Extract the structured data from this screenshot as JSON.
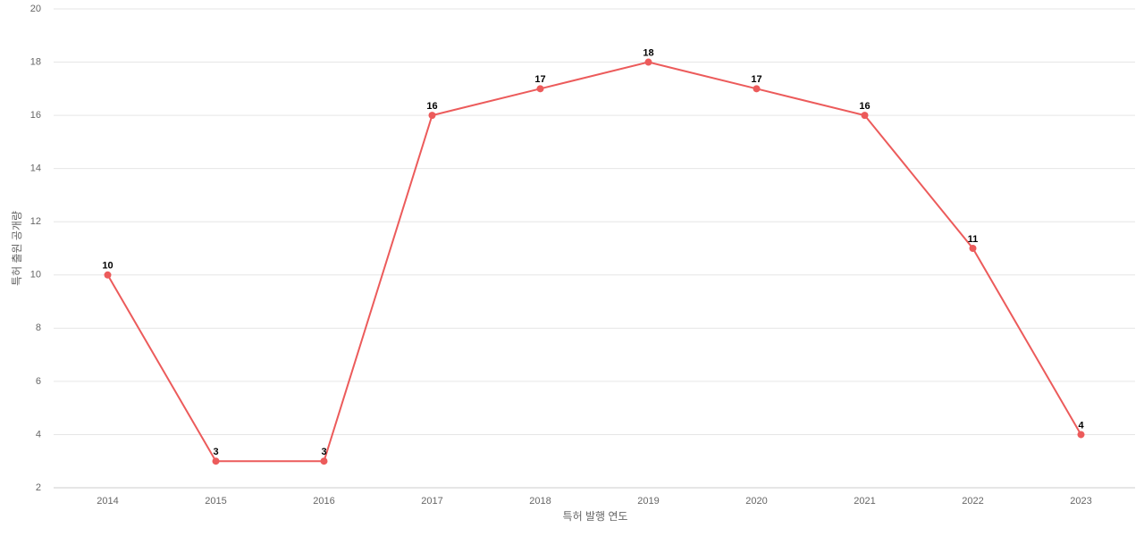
{
  "chart_data": {
    "type": "line",
    "x_label": "특허 발행 연도",
    "y_label": "특허 출원 공개량",
    "categories": [
      "2014",
      "2015",
      "2016",
      "2017",
      "2018",
      "2019",
      "2020",
      "2021",
      "2022",
      "2023"
    ],
    "series": [
      {
        "name": "특허 출원 공개량",
        "color": "#ec5b5b",
        "values": [
          10,
          3,
          3,
          16,
          17,
          18,
          17,
          16,
          11,
          4
        ]
      }
    ],
    "ylim": [
      2,
      20
    ],
    "yticks": [
      2,
      4,
      6,
      8,
      10,
      12,
      14,
      16,
      18,
      20
    ],
    "grid": true
  }
}
